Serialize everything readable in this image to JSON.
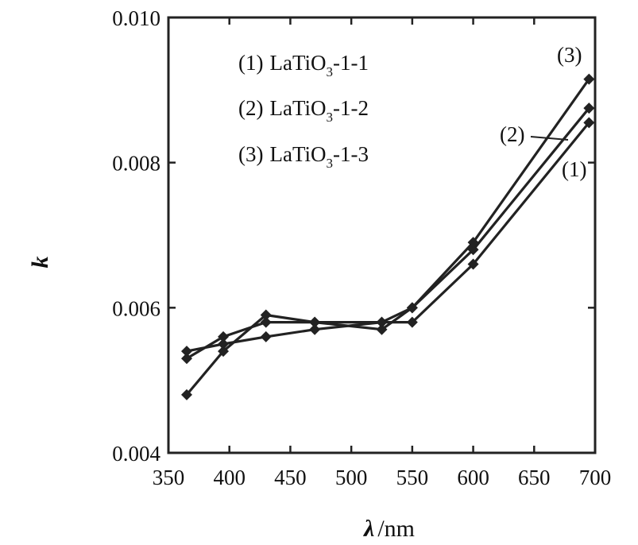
{
  "chart_data": {
    "type": "line",
    "xlabel": {
      "symbol": "λ",
      "unit": "/nm"
    },
    "ylabel": "k",
    "xlim": [
      350,
      700
    ],
    "ylim": [
      0.004,
      0.01
    ],
    "x_ticks": [
      "350",
      "400",
      "450",
      "500",
      "550",
      "600",
      "650",
      "700"
    ],
    "y_ticks": [
      "0.004",
      "0.006",
      "0.008",
      "0.010"
    ],
    "legend_position": "top-left inside",
    "legend": [
      {
        "num": "(1)",
        "base": "LaTiO",
        "sub": "3",
        "suffix": "-1-1"
      },
      {
        "num": "(2)",
        "base": "LaTiO",
        "sub": "3",
        "suffix": "-1-2"
      },
      {
        "num": "(3)",
        "base": "LaTiO",
        "sub": "3",
        "suffix": "-1-3"
      }
    ],
    "series": [
      {
        "name": "(1) LaTiO3-1-1",
        "tag": "(1)",
        "x": [
          365,
          395,
          430,
          470,
          525,
          550,
          600,
          695
        ],
        "y": [
          0.0054,
          0.0055,
          0.0056,
          0.0057,
          0.0058,
          0.0058,
          0.0066,
          0.00855
        ]
      },
      {
        "name": "(2) LaTiO3-1-2",
        "tag": "(2)",
        "x": [
          365,
          395,
          430,
          470,
          525,
          550,
          600,
          695
        ],
        "y": [
          0.0048,
          0.0054,
          0.0059,
          0.0058,
          0.0057,
          0.006,
          0.0068,
          0.00875
        ]
      },
      {
        "name": "(3) LaTiO3-1-3",
        "tag": "(3)",
        "x": [
          365,
          395,
          430,
          470,
          525,
          550,
          600,
          695
        ],
        "y": [
          0.0053,
          0.0056,
          0.0058,
          0.0058,
          0.0058,
          0.006,
          0.0069,
          0.00915
        ]
      }
    ],
    "color": "#222222"
  }
}
